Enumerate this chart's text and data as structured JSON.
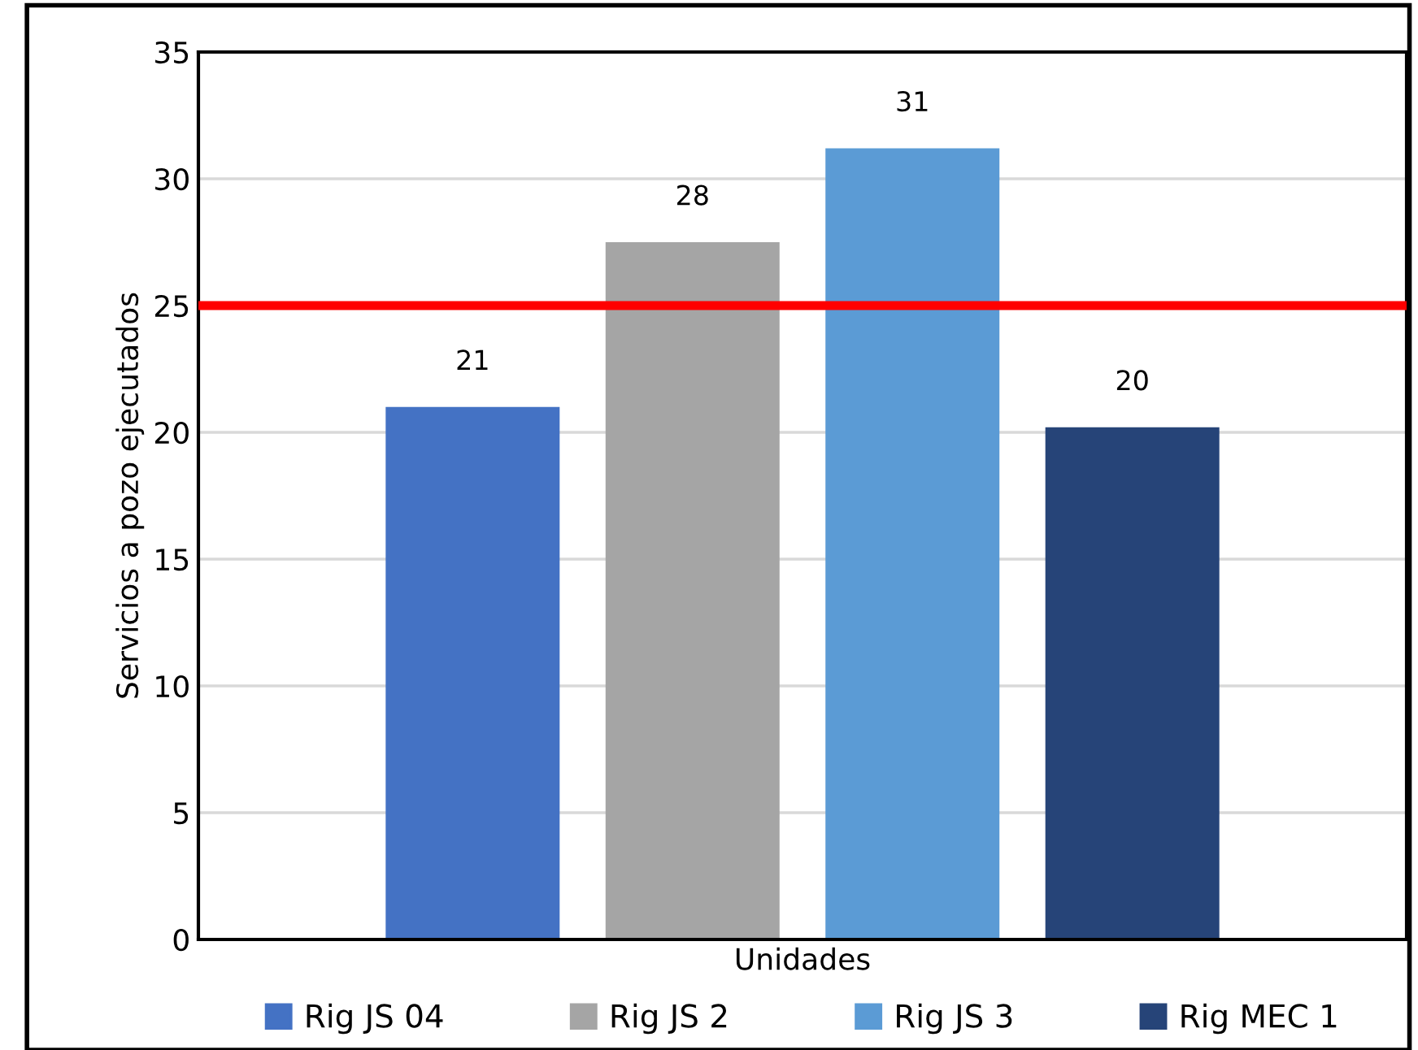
{
  "chart_data": {
    "type": "bar",
    "categories": [
      null
    ],
    "xlabel": "Unidades",
    "ylabel": "Servicios a pozo ejecutados",
    "series": [
      {
        "name": "Rig JS 04",
        "color": "#4472c4",
        "values": [
          21.0
        ],
        "value_labels": [
          "21"
        ]
      },
      {
        "name": "Rig JS 2",
        "color": "#a5a5a5",
        "values": [
          27.5
        ],
        "value_labels": [
          "28"
        ]
      },
      {
        "name": "Rig JS 3",
        "color": "#5b9bd5",
        "values": [
          31.2
        ],
        "value_labels": [
          "31"
        ]
      },
      {
        "name": "Rig MEC 1",
        "color": "#264478",
        "values": [
          20.2
        ],
        "value_labels": [
          "20"
        ]
      }
    ],
    "ylim": [
      0,
      35
    ],
    "yticks": [
      0,
      5,
      10,
      15,
      20,
      25,
      30,
      35
    ],
    "grid": "y",
    "legend": "bottom",
    "ref_lines": [
      {
        "axis": "y",
        "value": 25,
        "color": "#ff0000"
      }
    ]
  }
}
